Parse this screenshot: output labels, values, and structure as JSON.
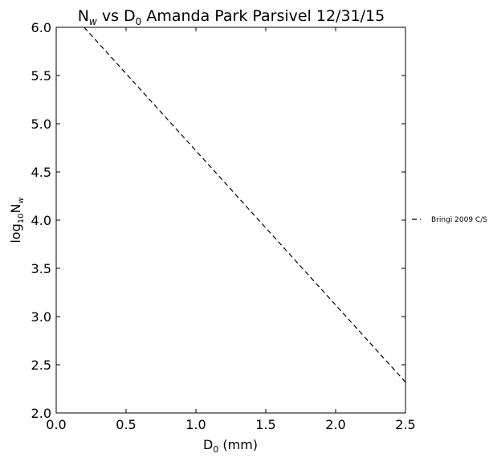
{
  "chart_data": {
    "type": "line",
    "title": {
      "main": "N",
      "main_sub": "w",
      "middle": " vs D",
      "middle_sub": "0",
      "rest": " Amanda Park Parsivel 12/31/15"
    },
    "xlabel": {
      "main": "D",
      "sub": "0",
      "rest": " (mm)"
    },
    "ylabel": {
      "main": "log",
      "sub": "10",
      "main2": "N",
      "sub2": "w"
    },
    "xlim": [
      0.0,
      2.5
    ],
    "ylim": [
      2.0,
      6.0
    ],
    "xticks": [
      0.0,
      0.5,
      1.0,
      1.5,
      2.0,
      2.5
    ],
    "xtick_labels": [
      "0.0",
      "0.5",
      "1.0",
      "1.5",
      "2.0",
      "2.5"
    ],
    "yticks": [
      2.0,
      2.5,
      3.0,
      3.5,
      4.0,
      4.5,
      5.0,
      5.5,
      6.0
    ],
    "ytick_labels": [
      "2.0",
      "2.5",
      "3.0",
      "3.5",
      "4.0",
      "4.5",
      "5.0",
      "5.5",
      "6.0"
    ],
    "grid": false,
    "legend_position": "outside-right",
    "series": [
      {
        "name": "Bringi 2009 C/S",
        "style": "dashed",
        "color": "#000000",
        "x": [
          0.2,
          2.5
        ],
        "y": [
          6.0,
          2.32
        ]
      }
    ]
  }
}
